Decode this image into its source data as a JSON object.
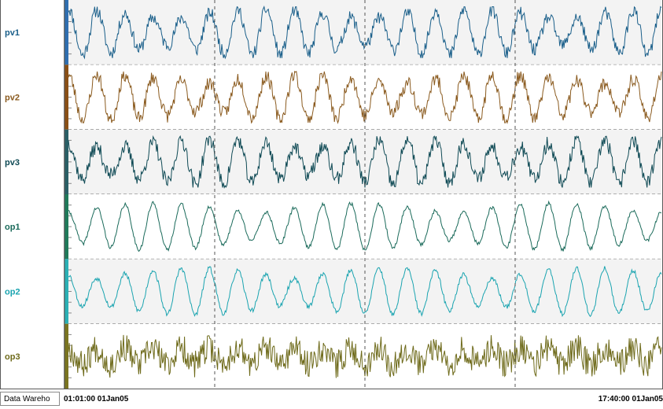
{
  "footer": {
    "source_label": "Data Wareho",
    "start_time": "01:01:00 01Jan05",
    "end_time": "17:40:00 01Jan05"
  },
  "chart_data": {
    "type": "line",
    "title": "",
    "xlabel": "",
    "ylabel": "",
    "x_range": [
      "01:01:00 01Jan05",
      "17:40:00 01Jan05"
    ],
    "grid": true,
    "series": [
      {
        "name": "pv1",
        "color": "#1a5f8a",
        "bar_color": "#2f6fb0",
        "band": "#f3f3f3",
        "style": "noisy-oscillation",
        "cycles": 21,
        "noise": 0.28,
        "seed": 11
      },
      {
        "name": "pv2",
        "color": "#8a5a1e",
        "bar_color": "#8a4f15",
        "band": "#ffffff",
        "style": "noisy-oscillation",
        "cycles": 21,
        "noise": 0.3,
        "seed": 23
      },
      {
        "name": "pv3",
        "color": "#0f4a55",
        "bar_color": "#2a5f66",
        "band": "#f3f3f3",
        "style": "noisy-oscillation",
        "cycles": 21,
        "noise": 0.32,
        "seed": 37
      },
      {
        "name": "op1",
        "color": "#1a6a5a",
        "bar_color": "#1f7a5a",
        "band": "#ffffff",
        "style": "smooth-oscillation",
        "cycles": 21,
        "noise": 0.08,
        "seed": 41
      },
      {
        "name": "op2",
        "color": "#1aa4b0",
        "bar_color": "#2bb0b5",
        "band": "#f3f3f3",
        "style": "smooth-oscillation",
        "cycles": 21,
        "noise": 0.1,
        "seed": 53
      },
      {
        "name": "op3",
        "color": "#6e6a1a",
        "bar_color": "#7a7420",
        "band": "#ffffff",
        "style": "spiky-noise",
        "cycles": 21,
        "noise": 0.6,
        "seed": 67
      }
    ]
  }
}
